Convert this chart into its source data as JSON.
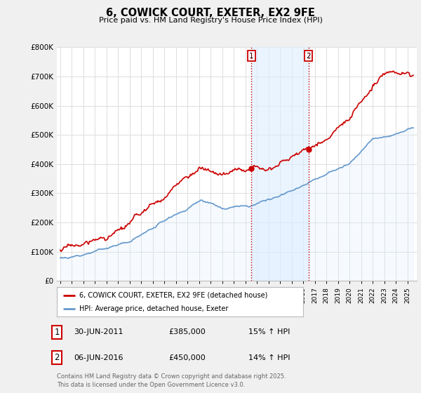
{
  "title": "6, COWICK COURT, EXETER, EX2 9FE",
  "subtitle": "Price paid vs. HM Land Registry's House Price Index (HPI)",
  "ylabel_values": [
    "£0",
    "£100K",
    "£200K",
    "£300K",
    "£400K",
    "£500K",
    "£600K",
    "£700K",
    "£800K"
  ],
  "ylim": [
    0,
    800000
  ],
  "yticks": [
    0,
    100000,
    200000,
    300000,
    400000,
    500000,
    600000,
    700000,
    800000
  ],
  "legend_label_red": "6, COWICK COURT, EXETER, EX2 9FE (detached house)",
  "legend_label_blue": "HPI: Average price, detached house, Exeter",
  "annotation1_label": "1",
  "annotation1_date": "30-JUN-2011",
  "annotation1_price": "£385,000",
  "annotation1_hpi": "15% ↑ HPI",
  "annotation1_year": 2011.5,
  "annotation2_label": "2",
  "annotation2_date": "06-JUN-2016",
  "annotation2_price": "£450,000",
  "annotation2_hpi": "14% ↑ HPI",
  "annotation2_year": 2016.45,
  "footer": "Contains HM Land Registry data © Crown copyright and database right 2025.\nThis data is licensed under the Open Government Licence v3.0.",
  "red_color": "#cc0000",
  "blue_line_color": "#6699cc",
  "blue_fill_color": "#ddeeff",
  "shaded_region_color": "#ddeeff",
  "vline_color": "#cc0000",
  "background_color": "#f0f0f0",
  "plot_bg_color": "#ffffff",
  "grid_color": "#dddddd"
}
